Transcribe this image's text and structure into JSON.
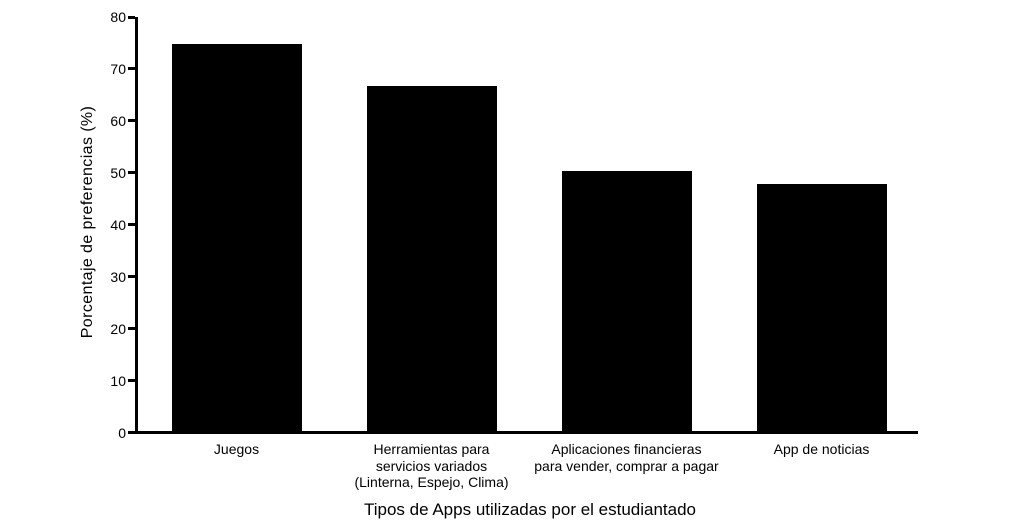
{
  "chart_data": {
    "type": "bar",
    "title": "",
    "xlabel": "Tipos de Apps utilizadas por el estudiantado",
    "ylabel": "Porcentaje de preferencias (%)",
    "categories": [
      "Juegos",
      "Herramientas para\nservicios variados\n(Linterna, Espejo, Clima)",
      "Aplicaciones financieras\npara vender, comprar a pagar",
      "App de noticias"
    ],
    "values": [
      74.8,
      66.8,
      50.4,
      47.8
    ],
    "ylim": [
      0,
      80
    ],
    "yticks": [
      0,
      10,
      20,
      30,
      40,
      50,
      60,
      70,
      80
    ],
    "bar_color": "#000000",
    "axis_color": "#000000",
    "background_color": "#ffffff",
    "grid": false,
    "legend": null
  }
}
